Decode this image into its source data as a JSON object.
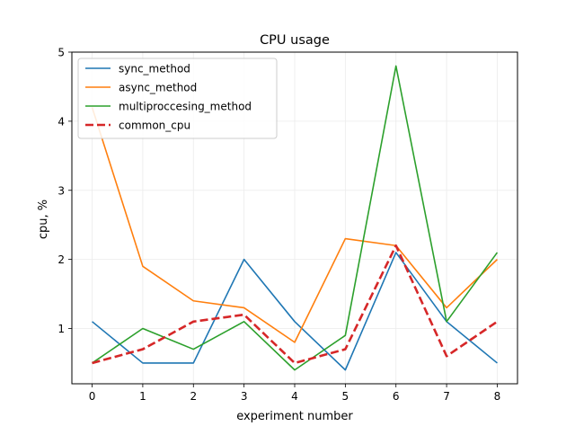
{
  "chart_data": {
    "type": "line",
    "title": "CPU usage",
    "xlabel": "experiment number",
    "ylabel": "cpu, %",
    "x": [
      0,
      1,
      2,
      3,
      4,
      5,
      6,
      7,
      8
    ],
    "xlim": [
      -0.4,
      8.4
    ],
    "ylim": [
      0.2,
      5.0
    ],
    "xticks": [
      0,
      1,
      2,
      3,
      4,
      5,
      6,
      7,
      8
    ],
    "yticks": [
      1,
      2,
      3,
      4,
      5
    ],
    "grid": true,
    "legend_position": "top-left",
    "series": [
      {
        "name": "sync_method",
        "color": "#1f77b4",
        "dashed": false,
        "values": [
          1.1,
          0.5,
          0.5,
          2.0,
          1.1,
          0.4,
          2.1,
          1.1,
          0.5
        ]
      },
      {
        "name": "async_method",
        "color": "#ff7f0e",
        "dashed": false,
        "values": [
          4.2,
          1.9,
          1.4,
          1.3,
          0.8,
          2.3,
          2.2,
          1.3,
          2.0
        ]
      },
      {
        "name": "multiproccesing_method",
        "color": "#2ca02c",
        "dashed": false,
        "values": [
          0.5,
          1.0,
          0.7,
          1.1,
          0.4,
          0.9,
          4.8,
          1.1,
          2.1
        ]
      },
      {
        "name": "common_cpu",
        "color": "#d62728",
        "dashed": true,
        "values": [
          0.5,
          0.7,
          1.1,
          1.2,
          0.5,
          0.7,
          2.2,
          0.6,
          1.1
        ]
      }
    ]
  }
}
